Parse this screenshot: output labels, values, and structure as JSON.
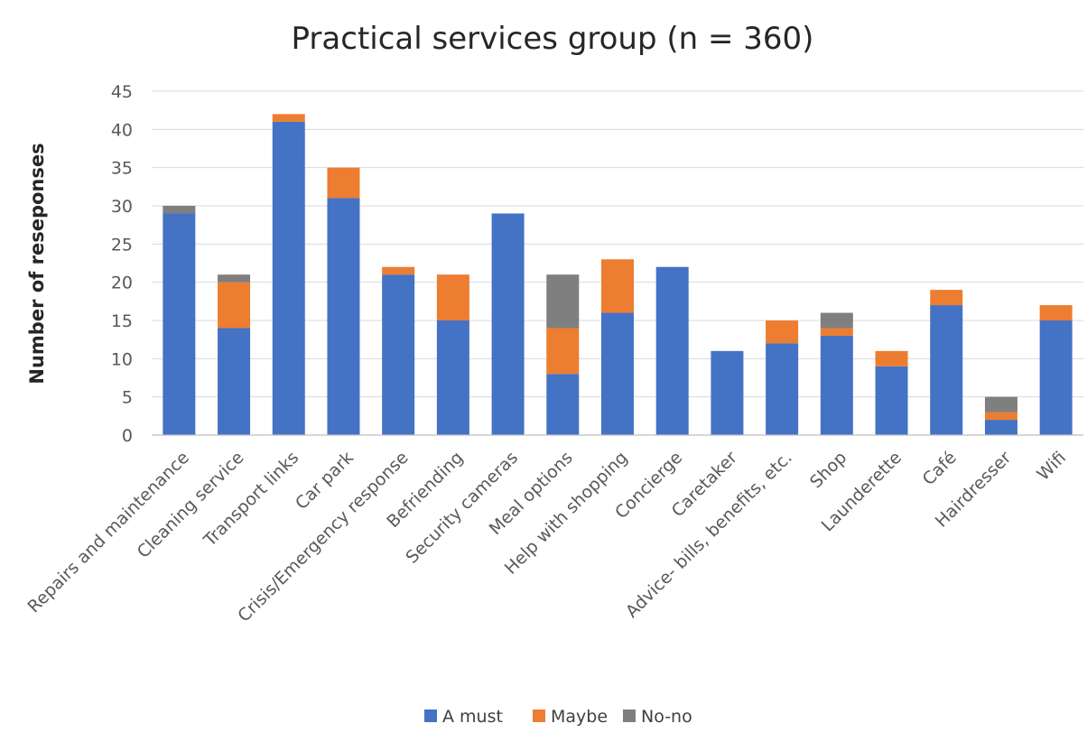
{
  "chart_data": {
    "type": "bar",
    "stacked": true,
    "title": "Practical services group (n = 360)",
    "xlabel": "",
    "ylabel": "Number of reseponses",
    "ylim": [
      0,
      45
    ],
    "yticks": [
      0,
      5,
      10,
      15,
      20,
      25,
      30,
      35,
      40,
      45
    ],
    "grid": true,
    "legend_position": "bottom",
    "categories": [
      "Repairs and maintenance",
      "Cleaning service",
      "Transport links",
      "Car park",
      "Crisis/Emergency response",
      "Befriending",
      "Security cameras",
      "Meal options",
      "Help with shopping",
      "Concierge",
      "Caretaker",
      "Advice- bills, benefits, etc.",
      "Shop",
      "Launderette",
      "Café",
      "Hairdresser",
      "Wifi"
    ],
    "series": [
      {
        "name": "A must",
        "color": "#4472c4",
        "values": [
          29,
          14,
          41,
          31,
          21,
          15,
          29,
          8,
          16,
          22,
          11,
          12,
          13,
          9,
          17,
          2,
          15
        ]
      },
      {
        "name": "Maybe",
        "color": "#ed7d31",
        "values": [
          0,
          6,
          1,
          4,
          1,
          6,
          0,
          6,
          7,
          0,
          0,
          3,
          1,
          2,
          2,
          1,
          2
        ]
      },
      {
        "name": "No-no",
        "color": "#7f7f7f",
        "values": [
          1,
          1,
          0,
          0,
          0,
          0,
          0,
          7,
          0,
          0,
          0,
          0,
          2,
          0,
          0,
          2,
          0
        ]
      }
    ]
  }
}
